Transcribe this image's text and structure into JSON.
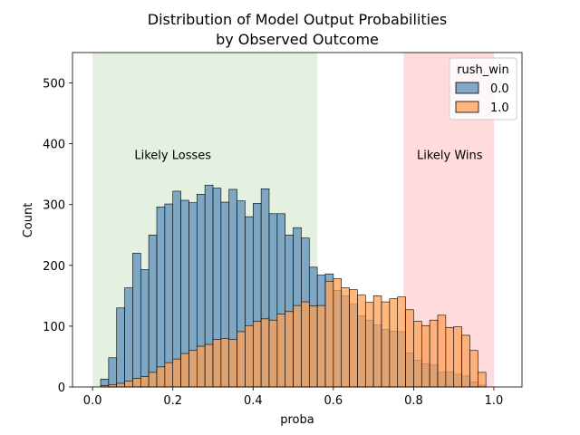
{
  "chart_data": {
    "type": "bar",
    "title": [
      "Distribution of Model Output Probabilities",
      "by Observed Outcome"
    ],
    "xlabel": "proba",
    "ylabel": "Count",
    "xlim": [
      -0.05,
      1.07
    ],
    "ylim": [
      0,
      550
    ],
    "xticks": [
      0.0,
      0.2,
      0.4,
      0.6,
      0.8,
      1.0
    ],
    "xtick_labels": [
      "0.0",
      "0.2",
      "0.4",
      "0.6",
      "0.8",
      "1.0"
    ],
    "yticks": [
      0,
      100,
      200,
      300,
      400,
      500
    ],
    "ytick_labels": [
      "0",
      "100",
      "200",
      "300",
      "400",
      "500"
    ],
    "grid": false,
    "bin_start": 0.0,
    "bin_width": 0.02,
    "series": [
      {
        "name": "0.0",
        "color": "#5b8fb8",
        "values": [
          0,
          13,
          48,
          130,
          163,
          220,
          193,
          250,
          296,
          301,
          322,
          307,
          303,
          317,
          332,
          327,
          304,
          325,
          306,
          280,
          302,
          326,
          285,
          285,
          250,
          262,
          245,
          197,
          184,
          186,
          159,
          150,
          136,
          117,
          110,
          102,
          95,
          92,
          91,
          56,
          44,
          38,
          36,
          24,
          25,
          21,
          18,
          8,
          3
        ]
      },
      {
        "name": "1.0",
        "color": "#ffa056",
        "values": [
          0,
          2,
          4,
          6,
          10,
          14,
          17,
          24,
          33,
          40,
          46,
          55,
          60,
          67,
          70,
          78,
          80,
          78,
          91,
          101,
          108,
          112,
          110,
          120,
          124,
          134,
          140,
          133,
          134,
          174,
          178,
          163,
          160,
          151,
          139,
          150,
          140,
          145,
          148,
          127,
          108,
          101,
          110,
          118,
          98,
          99,
          85,
          60,
          24
        ]
      }
    ],
    "shaded_regions": [
      {
        "x0": 0.0,
        "x1": 0.56,
        "color": "#d9ead3",
        "label": "Likely Losses"
      },
      {
        "x0": 0.775,
        "x1": 1.0,
        "color": "#ffcccc",
        "label": "Likely Wins"
      }
    ],
    "annotations": [
      {
        "text": "Likely Losses",
        "x": 0.2,
        "y": 375
      },
      {
        "text": "Likely Wins",
        "x": 0.89,
        "y": 375
      }
    ],
    "legend": {
      "title": "rush_win",
      "placement": "top-right",
      "entries": [
        "0.0",
        "1.0"
      ]
    }
  }
}
